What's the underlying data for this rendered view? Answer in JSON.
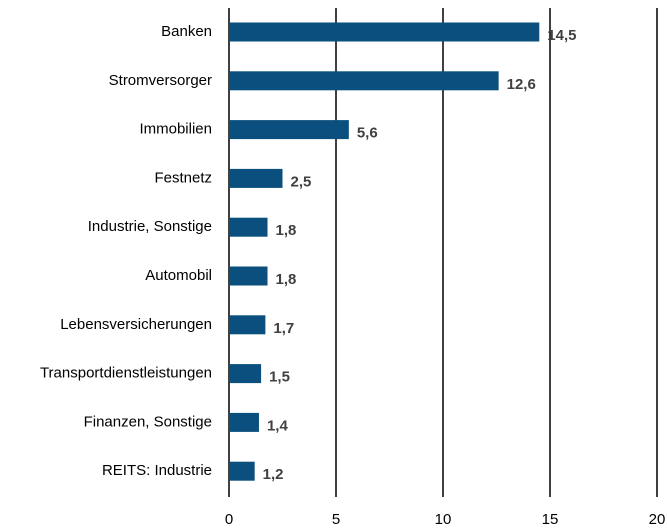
{
  "chart_data": {
    "type": "bar",
    "orientation": "horizontal",
    "categories": [
      "Banken",
      "Stromversorger",
      "Immobilien",
      "Festnetz",
      "Industrie, Sonstige",
      "Automobil",
      "Lebensversicherungen",
      "Transportdienstleistungen",
      "Finanzen, Sonstige",
      "REITS: Industrie"
    ],
    "values": [
      14.5,
      12.6,
      5.6,
      2.5,
      1.8,
      1.8,
      1.7,
      1.5,
      1.4,
      1.2
    ],
    "value_labels": [
      "14,5",
      "12,6",
      "5,6",
      "2,5",
      "1,8",
      "1,8",
      "1,7",
      "1,5",
      "1,4",
      "1,2"
    ],
    "color": "#0b4f7e",
    "xlim": [
      0,
      20
    ],
    "xticks": [
      0,
      5,
      10,
      15,
      20
    ],
    "grid": true
  }
}
